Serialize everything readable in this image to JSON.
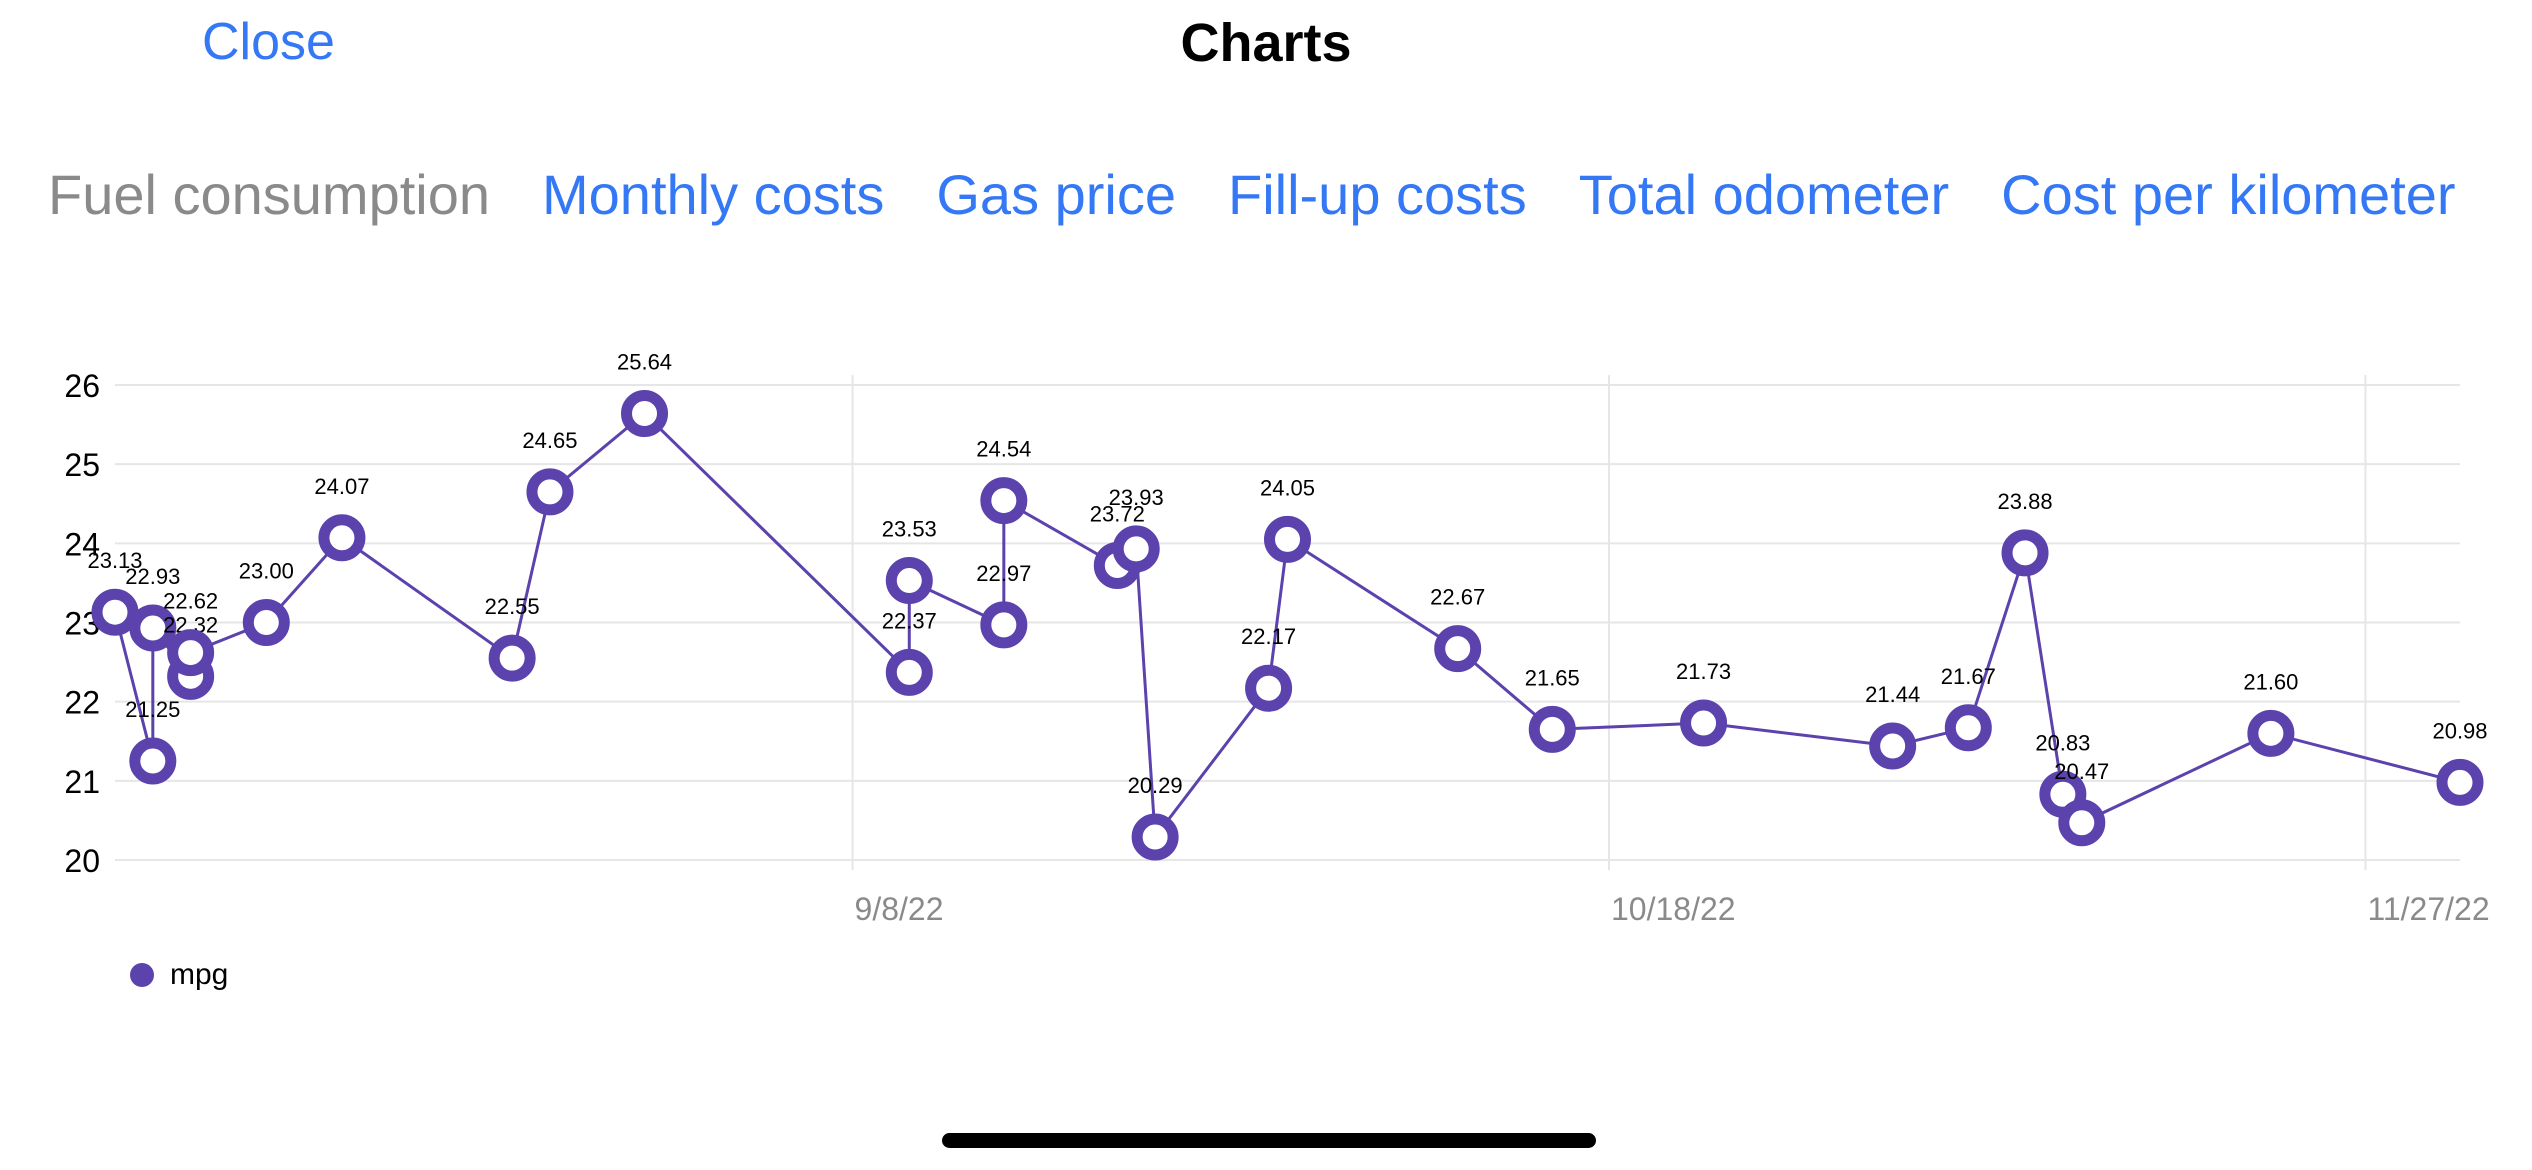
{
  "nav": {
    "close_label": "Close",
    "title": "Charts"
  },
  "tabs": [
    {
      "label": "Fuel consumption",
      "selected": true
    },
    {
      "label": "Monthly costs",
      "selected": false
    },
    {
      "label": "Gas price",
      "selected": false
    },
    {
      "label": "Fill-up costs",
      "selected": false
    },
    {
      "label": "Total odometer",
      "selected": false
    },
    {
      "label": "Cost per kilometer",
      "selected": false
    }
  ],
  "colors": {
    "accent": "#3478f6",
    "series": "#5b42ad",
    "tab_selected": "#8a8a8a",
    "grid": "#e6e6e6"
  },
  "chart_data": {
    "type": "line",
    "ylim": [
      20,
      26
    ],
    "y_ticks": [
      "20",
      "21",
      "22",
      "23",
      "24",
      "25",
      "26"
    ],
    "x_ticks": [
      {
        "label": "9/8/22",
        "date": "2022-09-08"
      },
      {
        "label": "10/18/22",
        "date": "2022-10-18"
      },
      {
        "label": "11/27/22",
        "date": "2022-11-27"
      }
    ],
    "legend": {
      "position": "bottom-left"
    },
    "series": [
      {
        "name": "mpg",
        "points": [
          {
            "x": "2022-07-31",
            "y": 23.13,
            "label": "23.13"
          },
          {
            "x": "2022-08-02",
            "y": 21.25,
            "label": "21.25"
          },
          {
            "x": "2022-08-02",
            "y": 22.93,
            "label": "22.93"
          },
          {
            "x": "2022-08-04",
            "y": 22.32,
            "label": "22.32"
          },
          {
            "x": "2022-08-04",
            "y": 22.62,
            "label": "22.62"
          },
          {
            "x": "2022-08-08",
            "y": 23.0,
            "label": "23.00"
          },
          {
            "x": "2022-08-12",
            "y": 24.07,
            "label": "24.07"
          },
          {
            "x": "2022-08-21",
            "y": 22.55,
            "label": "22.55"
          },
          {
            "x": "2022-08-23",
            "y": 24.65,
            "label": "24.65"
          },
          {
            "x": "2022-08-28",
            "y": 25.64,
            "label": "25.64"
          },
          {
            "x": "2022-09-11",
            "y": 22.37,
            "label": "22.37"
          },
          {
            "x": "2022-09-11",
            "y": 23.53,
            "label": "23.53"
          },
          {
            "x": "2022-09-16",
            "y": 22.97,
            "label": "22.97"
          },
          {
            "x": "2022-09-16",
            "y": 24.54,
            "label": "24.54"
          },
          {
            "x": "2022-09-22",
            "y": 23.72,
            "label": "23.72"
          },
          {
            "x": "2022-09-23",
            "y": 23.93,
            "label": "23.93"
          },
          {
            "x": "2022-09-24",
            "y": 20.29,
            "label": "20.29"
          },
          {
            "x": "2022-09-30",
            "y": 22.17,
            "label": "22.17"
          },
          {
            "x": "2022-10-01",
            "y": 24.05,
            "label": "24.05"
          },
          {
            "x": "2022-10-10",
            "y": 22.67,
            "label": "22.67"
          },
          {
            "x": "2022-10-15",
            "y": 21.65,
            "label": "21.65"
          },
          {
            "x": "2022-10-23",
            "y": 21.73,
            "label": "21.73"
          },
          {
            "x": "2022-11-02",
            "y": 21.44,
            "label": "21.44"
          },
          {
            "x": "2022-11-06",
            "y": 21.67,
            "label": "21.67"
          },
          {
            "x": "2022-11-09",
            "y": 23.88,
            "label": "23.88"
          },
          {
            "x": "2022-11-11",
            "y": 20.83,
            "label": "20.83"
          },
          {
            "x": "2022-11-12",
            "y": 20.47,
            "label": "20.47"
          },
          {
            "x": "2022-11-22",
            "y": 21.6,
            "label": "21.60"
          },
          {
            "x": "2022-12-02",
            "y": 20.98,
            "label": "20.98"
          }
        ]
      }
    ]
  }
}
